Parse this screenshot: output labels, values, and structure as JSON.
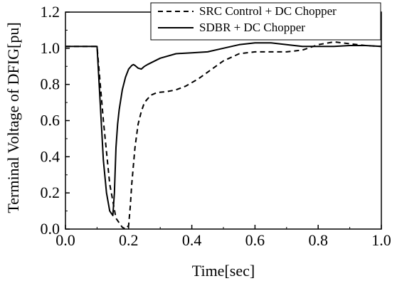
{
  "chart_data": {
    "type": "line",
    "title": "",
    "xlabel": "Time[sec]",
    "ylabel": "Terminal Voltage of DFIG[pu]",
    "xlim": [
      0.0,
      1.0
    ],
    "ylim": [
      0.0,
      1.2
    ],
    "xticks": [
      "0.0",
      "0.2",
      "0.4",
      "0.6",
      "0.8",
      "1.0"
    ],
    "yticks": [
      "0.0",
      "0.2",
      "0.4",
      "0.6",
      "0.8",
      "1.0",
      "1.2"
    ],
    "grid": false,
    "legend_position": "top-right",
    "series": [
      {
        "name": "SRC Control + DC Chopper",
        "style": "dashed",
        "color": "#000000",
        "x": [
          0.0,
          0.05,
          0.1,
          0.12,
          0.14,
          0.16,
          0.18,
          0.19,
          0.2,
          0.205,
          0.21,
          0.22,
          0.23,
          0.24,
          0.25,
          0.27,
          0.29,
          0.32,
          0.35,
          0.38,
          0.42,
          0.46,
          0.5,
          0.55,
          0.6,
          0.65,
          0.7,
          0.75,
          0.8,
          0.85,
          0.9,
          0.95,
          1.0
        ],
        "y": [
          1.01,
          1.01,
          1.01,
          0.6,
          0.25,
          0.06,
          0.01,
          0.0,
          0.02,
          0.12,
          0.25,
          0.45,
          0.58,
          0.65,
          0.7,
          0.74,
          0.755,
          0.76,
          0.77,
          0.79,
          0.83,
          0.88,
          0.93,
          0.97,
          0.98,
          0.98,
          0.98,
          0.99,
          1.02,
          1.035,
          1.025,
          1.015,
          1.01
        ]
      },
      {
        "name": "SDBR + DC Chopper",
        "style": "solid",
        "color": "#000000",
        "x": [
          0.0,
          0.05,
          0.1,
          0.11,
          0.12,
          0.13,
          0.14,
          0.15,
          0.155,
          0.16,
          0.165,
          0.17,
          0.18,
          0.19,
          0.2,
          0.21,
          0.215,
          0.22,
          0.23,
          0.24,
          0.25,
          0.26,
          0.3,
          0.35,
          0.4,
          0.45,
          0.5,
          0.55,
          0.6,
          0.65,
          0.7,
          0.75,
          0.8,
          0.85,
          0.9,
          0.95,
          1.0
        ],
        "y": [
          1.01,
          1.01,
          1.01,
          0.7,
          0.38,
          0.2,
          0.1,
          0.075,
          0.2,
          0.45,
          0.58,
          0.66,
          0.77,
          0.84,
          0.885,
          0.905,
          0.91,
          0.905,
          0.89,
          0.885,
          0.9,
          0.91,
          0.945,
          0.97,
          0.975,
          0.98,
          1.0,
          1.02,
          1.03,
          1.03,
          1.02,
          1.01,
          1.01,
          1.01,
          1.015,
          1.015,
          1.01
        ]
      }
    ]
  }
}
